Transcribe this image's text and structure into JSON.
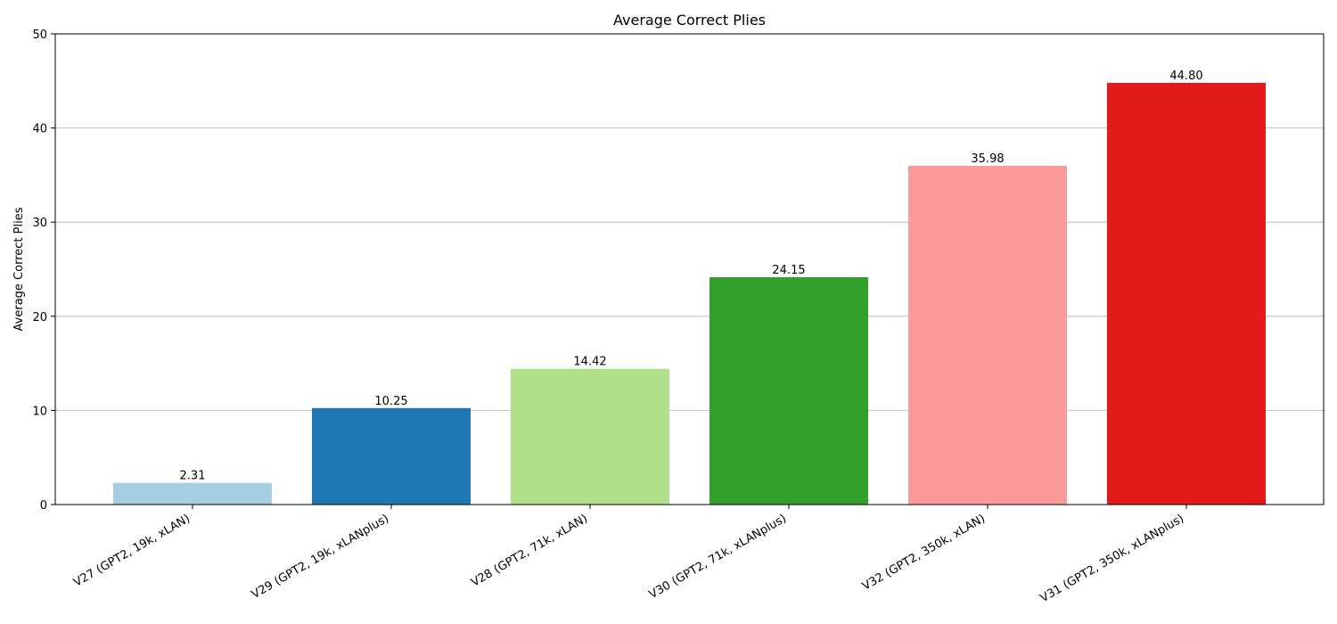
{
  "chart_data": {
    "type": "bar",
    "title": "Average Correct Plies",
    "xlabel": "",
    "ylabel": "Average Correct Plies",
    "ylim": [
      0,
      50
    ],
    "yticks": [
      0,
      10,
      20,
      30,
      40,
      50
    ],
    "grid": "y",
    "categories": [
      "V27 (GPT2, 19k, xLAN)",
      "V29 (GPT2, 19k, xLANplus)",
      "V28 (GPT2, 71k, xLAN)",
      "V30 (GPT2, 71k, xLANplus)",
      "V32 (GPT2, 350k, xLAN)",
      "V31 (GPT2, 350k, xLANplus)"
    ],
    "values": [
      2.31,
      10.25,
      14.42,
      24.15,
      35.98,
      44.8
    ],
    "value_labels": [
      "2.31",
      "10.25",
      "14.42",
      "24.15",
      "35.98",
      "44.80"
    ],
    "colors": [
      "#a6cee3",
      "#1f78b4",
      "#b2df8a",
      "#33a02c",
      "#fb9a99",
      "#e31a1c"
    ]
  }
}
